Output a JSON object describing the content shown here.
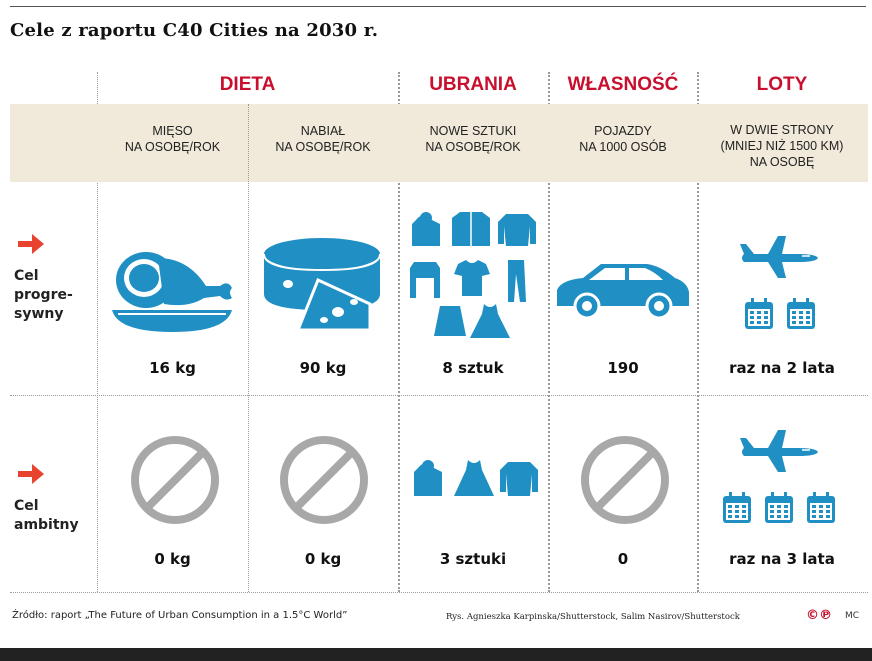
{
  "title": "Cele z raportu C40 Cities na 2030 r.",
  "categories": {
    "dieta": "DIETA",
    "ubrania": "UBRANIA",
    "wlasnosc": "WŁASNOŚĆ",
    "loty": "LOTY"
  },
  "headers": {
    "mieso": [
      "MIĘSO",
      "NA OSOBĘ/ROK"
    ],
    "nabial": [
      "NABIAŁ",
      "NA OSOBĘ/ROK"
    ],
    "ubrania": [
      "NOWE SZTUKI",
      "NA OSOBĘ/ROK"
    ],
    "pojazdy": [
      "POJAZDY",
      "NA 1000 OSÓB"
    ],
    "loty": [
      "W DWIE STRONY",
      "(MNIEJ NIŻ 1500 KM)",
      "NA OSOBĘ"
    ]
  },
  "rows": {
    "progresywny": {
      "label": [
        "Cel",
        "progre-",
        "sywny"
      ],
      "values": [
        "16 kg",
        "90 kg",
        "8 sztuk",
        "190",
        "raz na 2 lata"
      ]
    },
    "ambitny": {
      "label": [
        "Cel",
        "ambitny"
      ],
      "values": [
        "0 kg",
        "0 kg",
        "3 sztuki",
        "0",
        "raz na 3 lata"
      ]
    }
  },
  "footer": {
    "source": "Źródło: raport „The Future of Urban Consumption in a 1.5°C World”",
    "credits": "Rys. Agnieszka Karpinska/Shutterstock, Salim Nasirov/Shutterstock",
    "mc": "MC"
  },
  "colors": {
    "accent": "#c8102e",
    "icon": "#1f8fc4",
    "band": "#f1e9da",
    "arrow": "#e8432e",
    "banned": "#a8a8a8"
  },
  "icons": [
    "arrow-right-icon",
    "ham-icon",
    "cheese-icon",
    "clothing-icon",
    "car-icon",
    "airplane-icon",
    "calendar-icon",
    "prohibited-icon"
  ]
}
